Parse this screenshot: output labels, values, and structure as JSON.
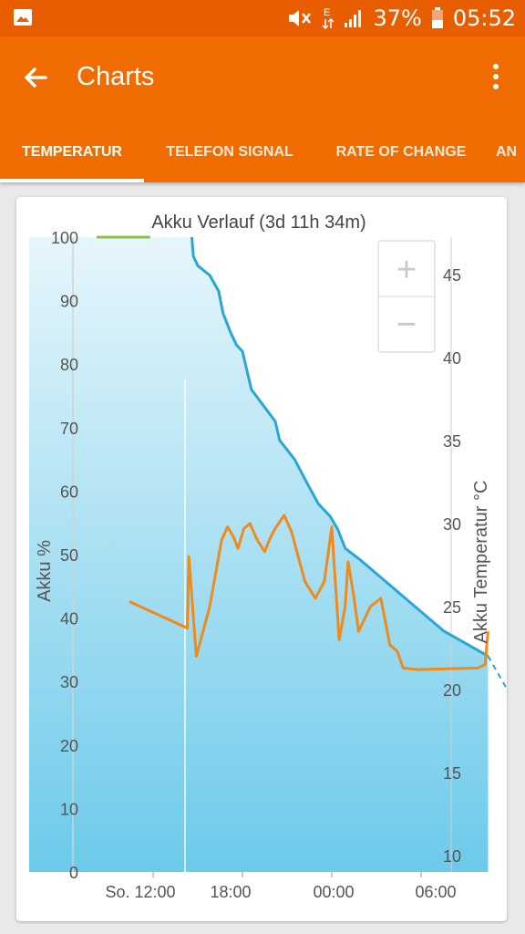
{
  "status_bar": {
    "battery_percent": "37%",
    "time": "05:52",
    "network_label": "E",
    "icons": [
      "image-icon",
      "mute-icon",
      "data-arrows-icon",
      "signal-icon",
      "battery-icon"
    ]
  },
  "app_bar": {
    "title": "Charts",
    "back_icon": "arrow-left-icon",
    "menu_icon": "more-vertical-icon"
  },
  "tabs": [
    {
      "label": "TEMPERATUR",
      "selected": true
    },
    {
      "label": "TELEFON SIGNAL",
      "selected": false
    },
    {
      "label": "RATE OF CHANGE",
      "selected": false
    },
    {
      "label": "AN",
      "selected": false
    }
  ],
  "colors": {
    "status_bar": "#e85d00",
    "app_bar": "#f06c00",
    "battery_line": "#2aa6d6",
    "temperature_line": "#ef8a1c",
    "charging_segment": "#8bc34a"
  },
  "zoom": {
    "plus": "+",
    "minus": "−"
  },
  "chart_data": {
    "type": "line",
    "title": "Akku Verlauf (3d 11h 34m)",
    "ylabel": "Akku %",
    "y2label": "Akku Temperatur °C",
    "ylim": [
      0,
      100
    ],
    "y2lim": [
      10,
      47
    ],
    "y_ticks": [
      "0",
      "10",
      "20",
      "30",
      "40",
      "50",
      "60",
      "70",
      "80",
      "90",
      "100"
    ],
    "y2_ticks": [
      "10",
      "15",
      "20",
      "25",
      "30",
      "35",
      "40",
      "45"
    ],
    "x_ticks": [
      "So. 12:00",
      "18:00",
      "00:00",
      "06:00"
    ],
    "series": [
      {
        "name": "Akku %",
        "axis": "left",
        "points": [
          [
            -3.4,
            100
          ],
          [
            -3.3,
            97
          ],
          [
            -3.0,
            95.5
          ],
          [
            -2.2,
            94
          ],
          [
            -1.6,
            91.5
          ],
          [
            -1.3,
            88
          ],
          [
            -0.8,
            85
          ],
          [
            -0.4,
            83
          ],
          [
            0.0,
            82
          ],
          [
            0.3,
            79
          ],
          [
            0.6,
            76
          ],
          [
            1.4,
            73.5
          ],
          [
            2.2,
            71
          ],
          [
            2.5,
            68
          ],
          [
            3.5,
            65
          ],
          [
            4.4,
            61
          ],
          [
            5.1,
            58
          ],
          [
            5.9,
            56
          ],
          [
            6.4,
            54
          ],
          [
            6.9,
            51
          ],
          [
            8.0,
            49
          ],
          [
            9.5,
            46
          ],
          [
            11.0,
            43
          ],
          [
            13.5,
            38
          ],
          [
            16.5,
            34
          ]
        ]
      },
      {
        "name": "Akku %",
        "axis": "left",
        "style": "dashed",
        "points": [
          [
            16.5,
            34
          ],
          [
            19.2,
            23
          ]
        ]
      },
      {
        "name": "Akku Temperatur °C",
        "axis": "right",
        "points": [
          [
            -7.6,
            25.3
          ],
          [
            -3.7,
            23.7
          ],
          [
            -3.6,
            28
          ],
          [
            -3.1,
            22
          ],
          [
            -2.2,
            25
          ],
          [
            -1.4,
            29
          ],
          [
            -1.0,
            29.8
          ],
          [
            -0.6,
            29.2
          ],
          [
            -0.3,
            28.5
          ],
          [
            0.1,
            29.7
          ],
          [
            0.5,
            30.0
          ],
          [
            1.0,
            29.0
          ],
          [
            1.5,
            28.3
          ],
          [
            1.8,
            29.0
          ],
          [
            2.2,
            29.7
          ],
          [
            2.8,
            30.5
          ],
          [
            3.3,
            29.5
          ],
          [
            4.2,
            26.5
          ],
          [
            4.9,
            25.5
          ],
          [
            5.5,
            26.5
          ],
          [
            6.0,
            29.8
          ],
          [
            6.2,
            27
          ],
          [
            6.5,
            23
          ],
          [
            6.9,
            25.0
          ],
          [
            7.1,
            27.7
          ],
          [
            7.5,
            25.5
          ],
          [
            7.8,
            23.5
          ],
          [
            8.6,
            25.0
          ],
          [
            9.3,
            25.5
          ],
          [
            9.9,
            22.7
          ],
          [
            10.4,
            22.3
          ],
          [
            10.8,
            21.3
          ],
          [
            11.8,
            21.2
          ],
          [
            15.8,
            21.3
          ],
          [
            16.3,
            21.5
          ],
          [
            16.5,
            23.5
          ]
        ]
      },
      {
        "name": "Laden",
        "axis": "left",
        "points": [
          [
            -9.8,
            100
          ],
          [
            -6.2,
            100
          ]
        ]
      }
    ],
    "grid": false,
    "legend": "none"
  }
}
